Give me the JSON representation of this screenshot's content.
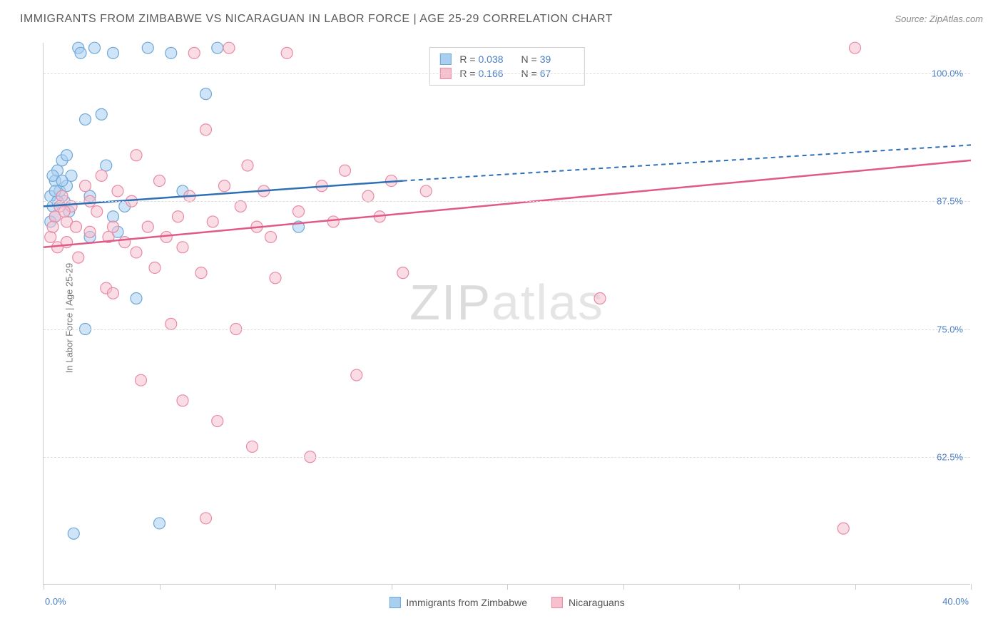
{
  "title": "IMMIGRANTS FROM ZIMBABWE VS NICARAGUAN IN LABOR FORCE | AGE 25-29 CORRELATION CHART",
  "source": "Source: ZipAtlas.com",
  "y_axis_label": "In Labor Force | Age 25-29",
  "watermark_a": "ZIP",
  "watermark_b": "atlas",
  "chart": {
    "type": "scatter",
    "xlim": [
      0,
      40
    ],
    "ylim": [
      50,
      103
    ],
    "x_ticks": [
      0,
      5,
      10,
      15,
      20,
      25,
      30,
      35,
      40
    ],
    "x_tick_labels": {
      "min": "0.0%",
      "max": "40.0%"
    },
    "y_grid": [
      62.5,
      75.0,
      87.5,
      100.0
    ],
    "y_tick_labels": [
      "62.5%",
      "75.0%",
      "87.5%",
      "100.0%"
    ],
    "background": "#ffffff",
    "grid_color": "#dddddd",
    "axis_color": "#cccccc",
    "tick_label_color": "#4a7fc4",
    "series": [
      {
        "name": "Immigrants from Zimbabwe",
        "color_fill": "#a8cef0",
        "color_stroke": "#6fa8d8",
        "line_color": "#2f6fb5",
        "R": "0.038",
        "N": "39",
        "marker_radius": 8,
        "marker_opacity": 0.55,
        "trend": {
          "x1": 0,
          "y1": 87.0,
          "x2": 15.5,
          "y2": 89.5,
          "dash_to_x": 40,
          "dash_to_y": 93.0
        },
        "points": [
          [
            0.3,
            88.0
          ],
          [
            0.4,
            87.0
          ],
          [
            0.5,
            86.0
          ],
          [
            0.5,
            89.5
          ],
          [
            0.6,
            90.5
          ],
          [
            0.7,
            88.5
          ],
          [
            0.8,
            91.5
          ],
          [
            0.9,
            87.5
          ],
          [
            1.0,
            89.0
          ],
          [
            1.0,
            92.0
          ],
          [
            1.2,
            90.0
          ],
          [
            1.5,
            102.5
          ],
          [
            1.6,
            102.0
          ],
          [
            1.8,
            95.5
          ],
          [
            1.8,
            75.0
          ],
          [
            2.0,
            88.0
          ],
          [
            2.2,
            102.5
          ],
          [
            2.5,
            96.0
          ],
          [
            2.7,
            91.0
          ],
          [
            3.0,
            102.0
          ],
          [
            3.2,
            84.5
          ],
          [
            3.5,
            87.0
          ],
          [
            4.0,
            78.0
          ],
          [
            4.5,
            102.5
          ],
          [
            5.0,
            56.0
          ],
          [
            5.5,
            102.0
          ],
          [
            6.0,
            88.5
          ],
          [
            3.0,
            86.0
          ],
          [
            7.0,
            98.0
          ],
          [
            7.5,
            102.5
          ],
          [
            1.3,
            55.0
          ],
          [
            11.0,
            85.0
          ],
          [
            2.0,
            84.0
          ],
          [
            0.3,
            85.5
          ],
          [
            0.4,
            90.0
          ],
          [
            0.6,
            87.5
          ],
          [
            0.8,
            89.5
          ],
          [
            1.1,
            86.5
          ],
          [
            0.5,
            88.5
          ]
        ]
      },
      {
        "name": "Nicaraguans",
        "color_fill": "#f6c0cf",
        "color_stroke": "#e88aa5",
        "line_color": "#e05a87",
        "R": "0.166",
        "N": "67",
        "marker_radius": 8,
        "marker_opacity": 0.55,
        "trend": {
          "x1": 0,
          "y1": 83.0,
          "x2": 40,
          "y2": 91.5,
          "dash_to_x": 40,
          "dash_to_y": 91.5
        },
        "points": [
          [
            0.3,
            84.0
          ],
          [
            0.5,
            86.0
          ],
          [
            0.6,
            83.0
          ],
          [
            0.8,
            88.0
          ],
          [
            1.0,
            85.5
          ],
          [
            1.2,
            87.0
          ],
          [
            1.5,
            82.0
          ],
          [
            1.8,
            89.0
          ],
          [
            2.0,
            84.5
          ],
          [
            2.3,
            86.5
          ],
          [
            2.5,
            90.0
          ],
          [
            2.7,
            79.0
          ],
          [
            3.0,
            85.0
          ],
          [
            3.2,
            88.5
          ],
          [
            3.5,
            83.5
          ],
          [
            3.8,
            87.5
          ],
          [
            4.0,
            92.0
          ],
          [
            4.2,
            70.0
          ],
          [
            4.5,
            85.0
          ],
          [
            4.8,
            81.0
          ],
          [
            5.0,
            89.5
          ],
          [
            5.3,
            84.0
          ],
          [
            5.5,
            75.5
          ],
          [
            5.8,
            86.0
          ],
          [
            6.0,
            68.0
          ],
          [
            6.3,
            88.0
          ],
          [
            6.5,
            102.0
          ],
          [
            6.8,
            80.5
          ],
          [
            7.0,
            94.5
          ],
          [
            7.3,
            85.5
          ],
          [
            7.5,
            66.0
          ],
          [
            7.8,
            89.0
          ],
          [
            8.0,
            102.5
          ],
          [
            8.3,
            75.0
          ],
          [
            8.5,
            87.0
          ],
          [
            8.8,
            91.0
          ],
          [
            9.0,
            63.5
          ],
          [
            9.2,
            85.0
          ],
          [
            9.5,
            88.5
          ],
          [
            10.0,
            80.0
          ],
          [
            10.5,
            102.0
          ],
          [
            11.0,
            86.5
          ],
          [
            11.5,
            62.5
          ],
          [
            12.0,
            89.0
          ],
          [
            12.5,
            85.5
          ],
          [
            13.0,
            90.5
          ],
          [
            13.5,
            70.5
          ],
          [
            14.0,
            88.0
          ],
          [
            14.5,
            86.0
          ],
          [
            15.0,
            89.5
          ],
          [
            15.5,
            80.5
          ],
          [
            16.5,
            88.5
          ],
          [
            3.0,
            78.5
          ],
          [
            4.0,
            82.5
          ],
          [
            2.0,
            87.5
          ],
          [
            1.0,
            83.5
          ],
          [
            0.4,
            85.0
          ],
          [
            0.7,
            87.0
          ],
          [
            24.0,
            78.0
          ],
          [
            7.0,
            56.5
          ],
          [
            34.5,
            55.5
          ],
          [
            35.0,
            102.5
          ],
          [
            9.8,
            84.0
          ],
          [
            6.0,
            83.0
          ],
          [
            2.8,
            84.0
          ],
          [
            1.4,
            85.0
          ],
          [
            0.9,
            86.5
          ]
        ]
      }
    ]
  },
  "legend_bottom": [
    {
      "label": "Immigrants from Zimbabwe",
      "fill": "#a8cef0",
      "stroke": "#6fa8d8"
    },
    {
      "label": "Nicaraguans",
      "fill": "#f6c0cf",
      "stroke": "#e88aa5"
    }
  ]
}
